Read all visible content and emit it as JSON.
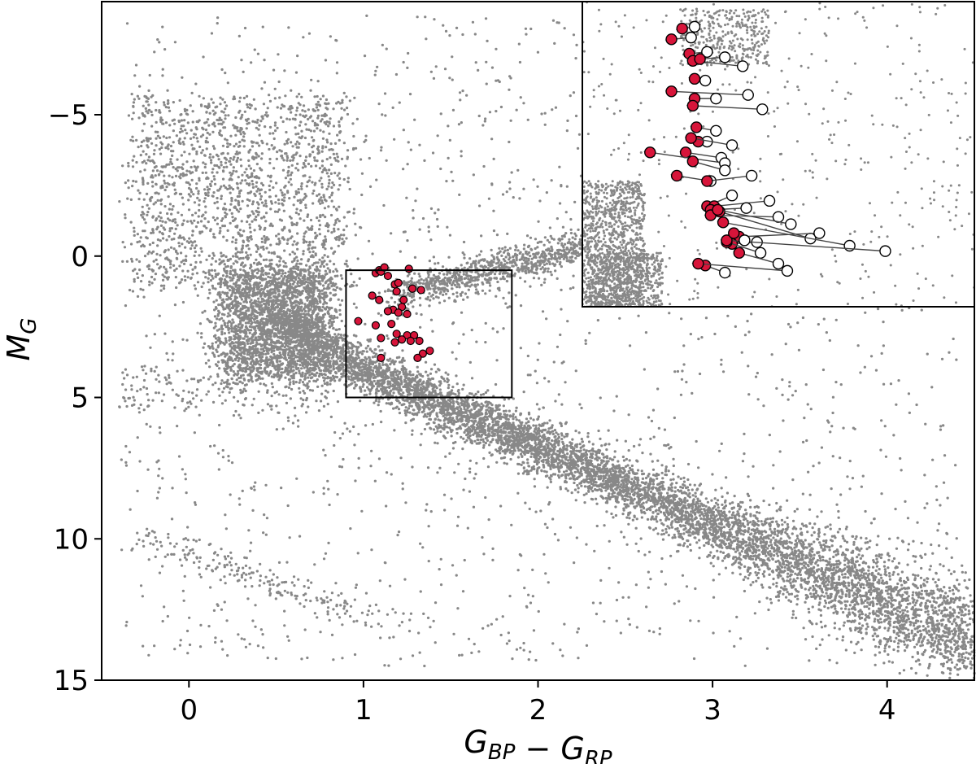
{
  "chart_data": {
    "type": "scatter",
    "title": "",
    "xlabel": "G_BP − G_RP",
    "ylabel": "M_G",
    "xlim": [
      -0.5,
      4.5
    ],
    "ylim": [
      15,
      -9
    ],
    "y_inverted": true,
    "grid": false,
    "xticks": [
      0,
      1,
      2,
      3,
      4
    ],
    "xtick_labels": [
      "0",
      "1",
      "2",
      "3",
      "4"
    ],
    "yticks": [
      -5,
      0,
      5,
      10,
      15
    ],
    "ytick_labels": [
      "−5",
      "0",
      "5",
      "10",
      "15"
    ],
    "colors": {
      "field": "#888888",
      "highlight": "#d7153a",
      "box": "#000000",
      "arrow": "#444444"
    },
    "zoom_box": {
      "x": [
        0.9,
        1.85
      ],
      "y": [
        0.5,
        5.0
      ]
    },
    "highlighted_stars": [
      [
        1.07,
        0.6
      ],
      [
        1.09,
        0.5
      ],
      [
        1.1,
        0.55
      ],
      [
        1.12,
        0.4
      ],
      [
        1.14,
        0.7
      ],
      [
        1.18,
        1.0
      ],
      [
        1.2,
        0.95
      ],
      [
        1.26,
        0.45
      ],
      [
        1.28,
        1.15
      ],
      [
        1.19,
        1.25
      ],
      [
        1.23,
        1.55
      ],
      [
        1.22,
        1.8
      ],
      [
        1.17,
        1.9
      ],
      [
        1.2,
        2.0
      ],
      [
        1.14,
        1.95
      ],
      [
        1.25,
        2.05
      ],
      [
        1.05,
        1.4
      ],
      [
        1.09,
        1.55
      ],
      [
        0.97,
        2.3
      ],
      [
        1.07,
        2.45
      ],
      [
        1.16,
        2.4
      ],
      [
        1.19,
        2.75
      ],
      [
        1.25,
        2.8
      ],
      [
        1.29,
        2.8
      ],
      [
        1.27,
        3.0
      ],
      [
        1.22,
        2.95
      ],
      [
        1.18,
        3.05
      ],
      [
        1.1,
        2.9
      ],
      [
        1.32,
        3.0
      ],
      [
        1.34,
        3.45
      ],
      [
        1.31,
        3.6
      ],
      [
        1.38,
        3.35
      ],
      [
        1.1,
        3.6
      ],
      [
        1.33,
        1.2
      ]
    ],
    "inset_shifts": [
      {
        "from": [
          1.13,
          -7.3
        ],
        "to": [
          1.06,
          -7.25
        ]
      },
      {
        "from": [
          1.11,
          -7.0
        ],
        "to": [
          1.0,
          -6.95
        ]
      },
      {
        "from": [
          1.2,
          -6.6
        ],
        "to": [
          1.1,
          -6.55
        ]
      },
      {
        "from": [
          1.4,
          -6.2
        ],
        "to": [
          1.12,
          -6.35
        ]
      },
      {
        "from": [
          1.3,
          -6.45
        ],
        "to": [
          1.16,
          -6.4
        ]
      },
      {
        "from": [
          1.19,
          -5.8
        ],
        "to": [
          1.13,
          -5.85
        ]
      },
      {
        "from": [
          1.43,
          -5.4
        ],
        "to": [
          1.0,
          -5.5
        ]
      },
      {
        "from": [
          1.25,
          -5.3
        ],
        "to": [
          1.13,
          -5.3
        ]
      },
      {
        "from": [
          1.51,
          -5.0
        ],
        "to": [
          1.12,
          -5.1
        ]
      },
      {
        "from": [
          1.25,
          -4.4
        ],
        "to": [
          1.14,
          -4.5
        ]
      },
      {
        "from": [
          1.2,
          -4.1
        ],
        "to": [
          1.15,
          -4.1
        ]
      },
      {
        "from": [
          1.34,
          -4.0
        ],
        "to": [
          1.11,
          -4.2
        ]
      },
      {
        "from": [
          1.28,
          -3.65
        ],
        "to": [
          1.08,
          -3.8
        ]
      },
      {
        "from": [
          1.3,
          -3.5
        ],
        "to": [
          0.88,
          -3.8
        ]
      },
      {
        "from": [
          1.3,
          -3.3
        ],
        "to": [
          1.12,
          -3.55
        ]
      },
      {
        "from": [
          1.22,
          -3.0
        ],
        "to": [
          1.03,
          -3.15
        ]
      },
      {
        "from": [
          1.45,
          -3.15
        ],
        "to": [
          1.2,
          -3.0
        ]
      },
      {
        "from": [
          1.34,
          -2.6
        ],
        "to": [
          1.2,
          -2.3
        ]
      },
      {
        "from": [
          1.55,
          -2.45
        ],
        "to": [
          1.24,
          -2.3
        ]
      },
      {
        "from": [
          1.42,
          -2.25
        ],
        "to": [
          1.22,
          -2.2
        ]
      },
      {
        "from": [
          1.6,
          -2.0
        ],
        "to": [
          1.22,
          -2.05
        ]
      },
      {
        "from": [
          1.78,
          -1.4
        ],
        "to": [
          1.27,
          -2.15
        ]
      },
      {
        "from": [
          1.67,
          -1.8
        ],
        "to": [
          1.26,
          -2.2
        ]
      },
      {
        "from": [
          2.0,
          -1.2
        ],
        "to": [
          1.29,
          -1.85
        ]
      },
      {
        "from": [
          1.83,
          -1.55
        ],
        "to": [
          1.38,
          -1.45
        ]
      },
      {
        "from": [
          1.48,
          -1.3
        ],
        "to": [
          1.34,
          -1.25
        ]
      },
      {
        "from": [
          1.5,
          -1.0
        ],
        "to": [
          1.31,
          -1.3
        ]
      },
      {
        "from": [
          1.3,
          -0.45
        ],
        "to": [
          1.19,
          -0.65
        ]
      },
      {
        "from": [
          2.2,
          -1.05
        ],
        "to": [
          1.31,
          -1.35
        ]
      },
      {
        "from": [
          1.6,
          -0.7
        ],
        "to": [
          1.38,
          -1.0
        ]
      },
      {
        "from": [
          1.41,
          -1.35
        ],
        "to": [
          1.35,
          -1.55
        ]
      },
      {
        "from": [
          1.65,
          -0.5
        ],
        "to": [
          1.15,
          -0.7
        ]
      }
    ]
  }
}
